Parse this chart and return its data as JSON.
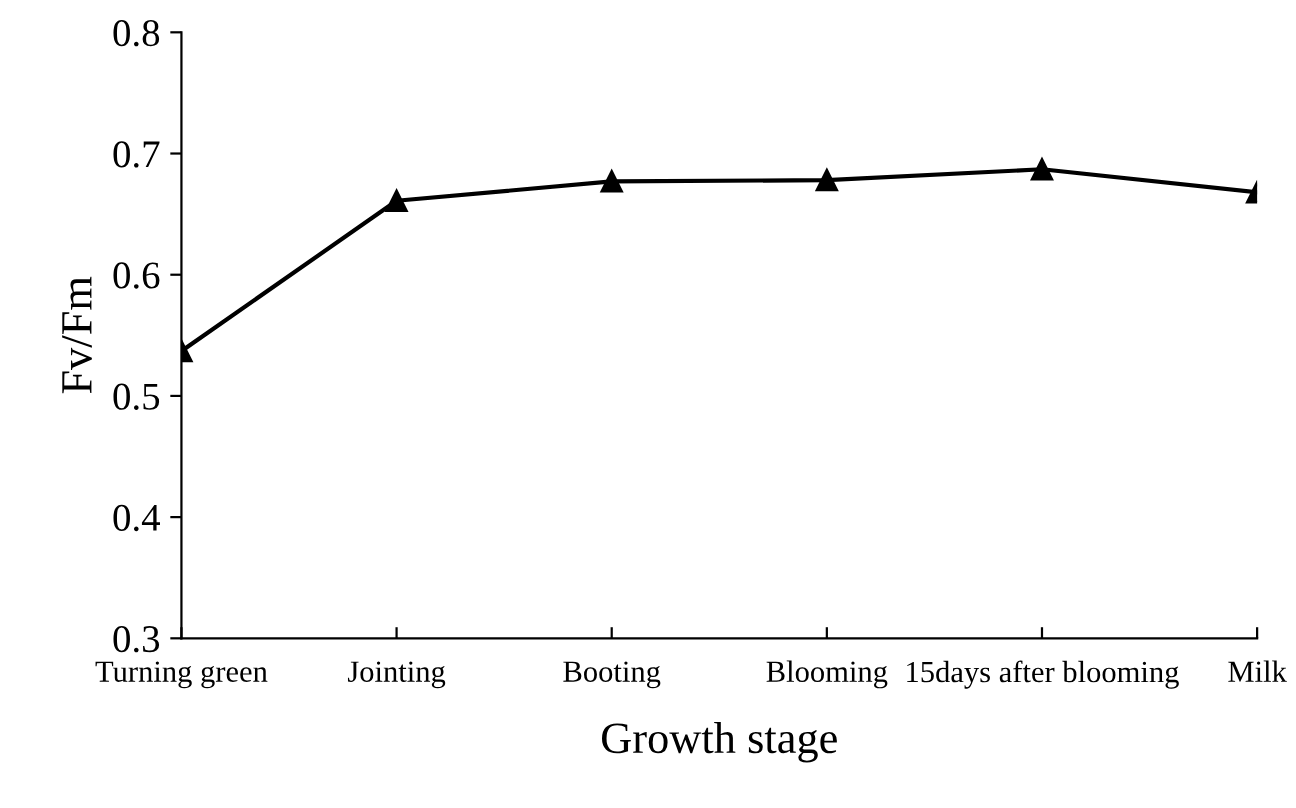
{
  "chart_data": {
    "type": "line",
    "xlabel": "Growth stage",
    "ylabel": "Fv/Fm",
    "categories": [
      "Turning green",
      "Jointing",
      "Booting",
      "Blooming",
      "15days after blooming",
      "Milk"
    ],
    "series": [
      {
        "color": "#000000",
        "values": [
          0.537,
          0.661,
          0.677,
          0.678,
          0.687,
          0.668
        ]
      }
    ],
    "ylim": [
      0.3,
      0.8
    ],
    "yticks": [
      0.3,
      0.4,
      0.5,
      0.6,
      0.7,
      0.8
    ],
    "marker": "triangle",
    "line_style": "solid",
    "grid": false,
    "legend": false
  }
}
